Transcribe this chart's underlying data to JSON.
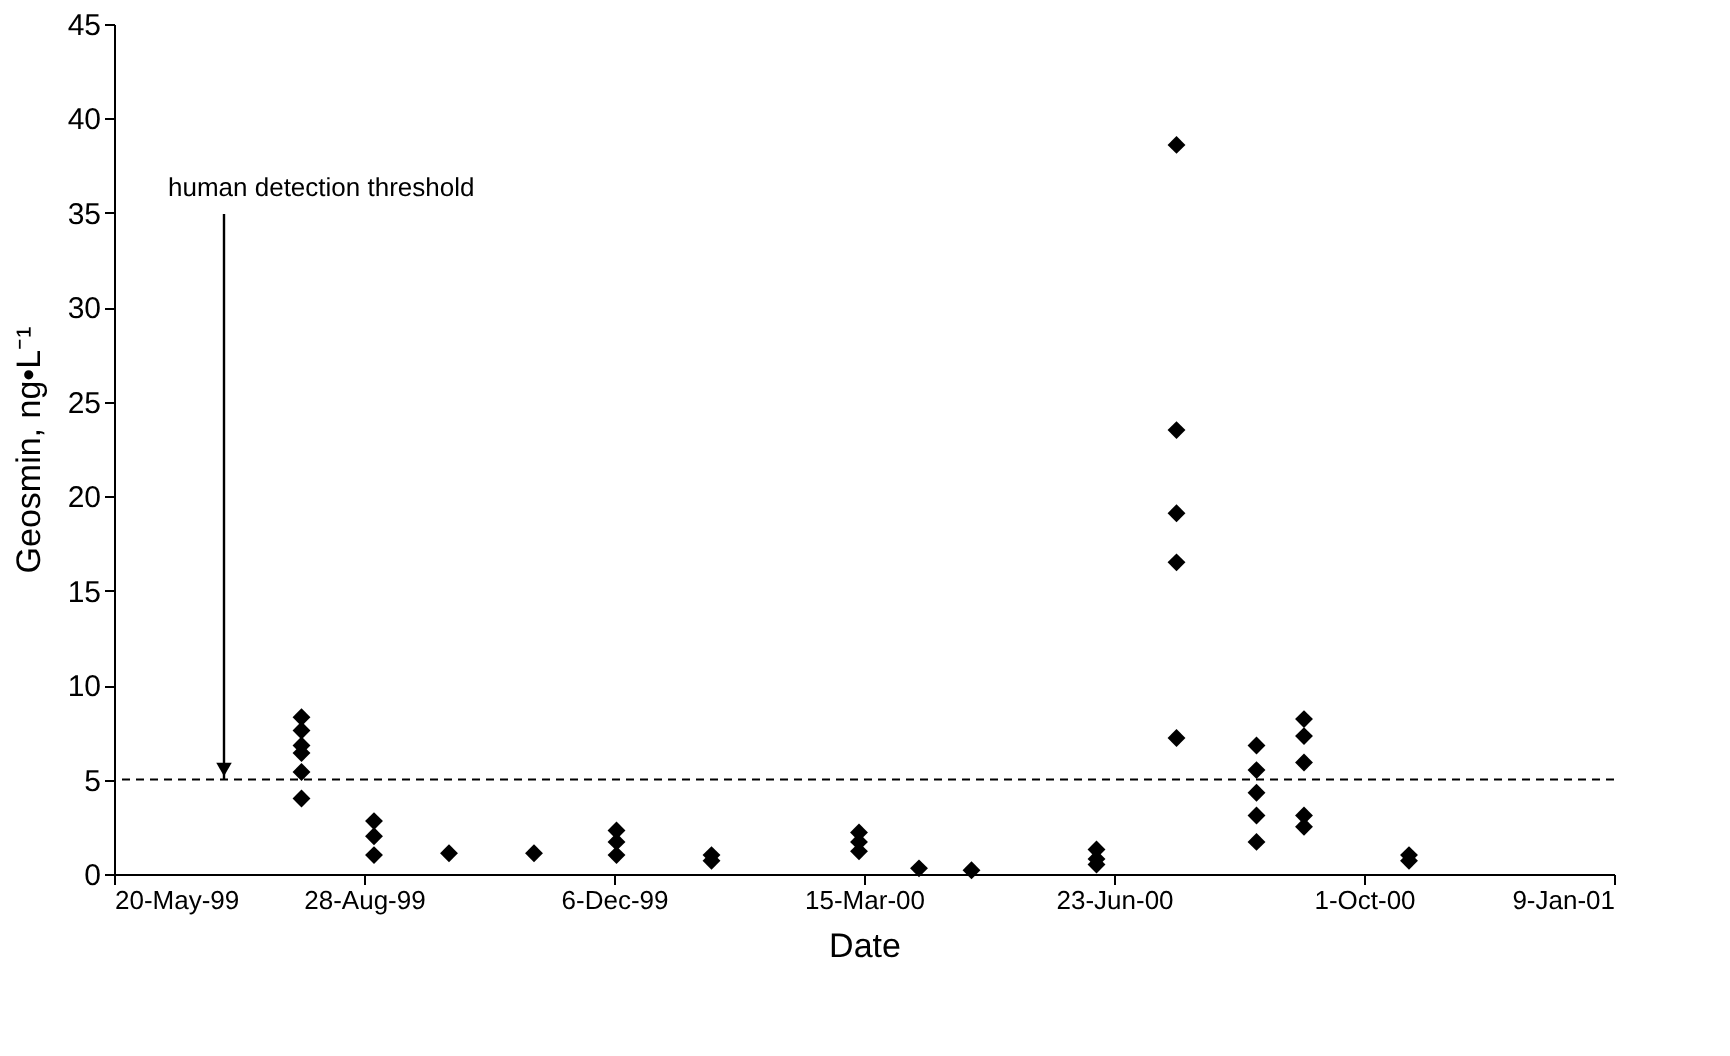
{
  "chart_data": {
    "type": "scatter",
    "xlabel": "Date",
    "ylabel": "Geosmin, ng•L⁻¹",
    "series": [
      {
        "color": "#000000",
        "x": [
          "1999-08-03",
          "1999-08-03",
          "1999-08-03",
          "1999-08-03",
          "1999-08-03",
          "1999-08-03",
          "1999-09-01",
          "1999-09-01",
          "1999-09-01",
          "1999-10-01",
          "1999-11-04",
          "1999-12-07",
          "1999-12-07",
          "1999-12-07",
          "2000-01-14",
          "2000-01-14",
          "2000-03-13",
          "2000-03-13",
          "2000-03-13",
          "2000-04-06",
          "2000-04-27",
          "2000-06-16",
          "2000-06-16",
          "2000-06-16",
          "2000-07-18",
          "2000-07-18",
          "2000-07-18",
          "2000-07-18",
          "2000-07-18",
          "2000-08-19",
          "2000-08-19",
          "2000-08-19",
          "2000-08-19",
          "2000-08-19",
          "2000-09-07",
          "2000-09-07",
          "2000-09-07",
          "2000-09-07",
          "2000-09-07",
          "2000-10-19",
          "2000-10-19"
        ],
        "values": [
          8.3,
          7.6,
          6.8,
          6.4,
          5.4,
          4.0,
          2.8,
          2.0,
          1.0,
          1.1,
          1.1,
          2.3,
          1.7,
          1.0,
          1.0,
          0.7,
          2.2,
          1.7,
          1.2,
          0.3,
          0.2,
          1.3,
          0.8,
          0.5,
          38.6,
          23.5,
          19.1,
          16.5,
          7.2,
          6.8,
          5.5,
          4.3,
          3.1,
          1.7,
          8.2,
          7.3,
          5.9,
          3.1,
          2.5,
          1.0,
          0.7
        ]
      }
    ],
    "xlim": [
      "1999-05-20",
      "2001-01-09"
    ],
    "xticks": [
      {
        "value": "1999-05-20",
        "label": "20-May-99"
      },
      {
        "value": "1999-08-28",
        "label": "28-Aug-99"
      },
      {
        "value": "1999-12-06",
        "label": "6-Dec-99"
      },
      {
        "value": "2000-03-15",
        "label": "15-Mar-00"
      },
      {
        "value": "2000-06-23",
        "label": "23-Jun-00"
      },
      {
        "value": "2000-10-01",
        "label": "1-Oct-00"
      },
      {
        "value": "2001-01-09",
        "label": "9-Jan-01"
      }
    ],
    "ylim": [
      0,
      45
    ],
    "yticks": [
      0,
      5,
      10,
      15,
      20,
      25,
      30,
      35,
      40,
      45
    ],
    "ref_lines": [
      {
        "axis": "y",
        "value": 5,
        "line_style": "dashed",
        "color": "#000000"
      }
    ],
    "annotations": [
      {
        "text": "human detection threshold",
        "x": "1999-07-03",
        "y": 5
      }
    ],
    "marker": "diamond",
    "grid": false
  }
}
